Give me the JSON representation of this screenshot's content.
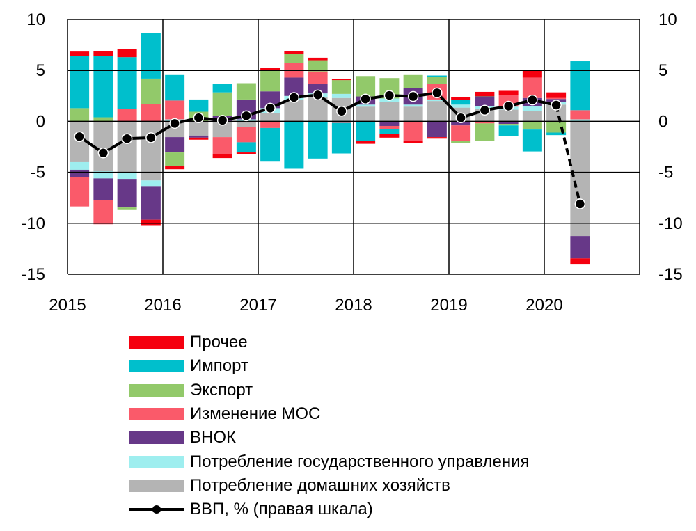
{
  "chart_data": {
    "type": "bar",
    "subtype": "stacked bar with line (right axis)",
    "title": "",
    "x_tick_labels": [
      "2015",
      "2016",
      "2017",
      "2018",
      "2019",
      "2020"
    ],
    "categories": [
      "2015Q1",
      "2015Q2",
      "2015Q3",
      "2015Q4",
      "2016Q1",
      "2016Q2",
      "2016Q3",
      "2016Q4",
      "2017Q1",
      "2017Q2",
      "2017Q3",
      "2017Q4",
      "2018Q1",
      "2018Q2",
      "2018Q3",
      "2018Q4",
      "2019Q1",
      "2019Q2",
      "2019Q3",
      "2019Q4",
      "2020Q1",
      "2020Q2"
    ],
    "ylim": [
      -15,
      10
    ],
    "yticks": [
      "10",
      "5",
      "0",
      "-5",
      "-10",
      "-15"
    ],
    "y_right_ticks": [
      "10",
      "5",
      "0",
      "-5",
      "-10",
      "-15"
    ],
    "grid": true,
    "legend_placement": "bottom",
    "series": [
      {
        "name": "Потребление домашних хозяйств",
        "color": "#b4b4b4",
        "values": [
          -4.0,
          -4.9,
          -5.05,
          -5.8,
          -1.55,
          -1.4,
          -1.55,
          -0.55,
          0.85,
          2.1,
          2.35,
          2.3,
          1.45,
          1.9,
          1.45,
          2.0,
          1.35,
          1.2,
          1.15,
          1.05,
          1.65,
          -11.25
        ]
      },
      {
        "name": "Потребление государственного управления",
        "color": "#9eeeef",
        "values": [
          -0.75,
          -0.7,
          -0.6,
          -0.55,
          0.2,
          0,
          0,
          0.2,
          0.45,
          0.4,
          0.4,
          0.4,
          0.2,
          0.35,
          0.2,
          0.15,
          0.3,
          0.3,
          0.3,
          0.45,
          0.25,
          0.2
        ]
      },
      {
        "name": "ВНОК",
        "color": "#673888",
        "values": [
          -0.7,
          -2.1,
          -2.8,
          -3.3,
          -1.5,
          -0.2,
          0.55,
          1.95,
          1.65,
          1.8,
          0.9,
          0,
          0.8,
          -0.45,
          1.65,
          -1.55,
          -0.4,
          0.85,
          -0.25,
          0.8,
          0.3,
          -2.2
        ]
      },
      {
        "name": "Изменение МОС",
        "color": "#fa5a6a",
        "values": [
          -2.9,
          -2.4,
          1.2,
          1.7,
          1.85,
          0,
          -1.65,
          -1.5,
          -0.65,
          1.45,
          1.25,
          -0.15,
          -0.1,
          -0.3,
          -1.9,
          1.5,
          -1.5,
          -0.2,
          1.15,
          2.0,
          0.1,
          0.9
        ]
      },
      {
        "name": "Экспорт",
        "color": "#92c96a",
        "values": [
          1.3,
          0.4,
          -0.25,
          2.5,
          -1.35,
          0.95,
          2.3,
          1.6,
          2.0,
          0.85,
          1.1,
          1.35,
          2.0,
          2.0,
          1.25,
          0.7,
          -0.2,
          -1.7,
          -0.15,
          -0.8,
          -1.1,
          0
        ]
      },
      {
        "name": "Импорт",
        "color": "#00bfcc",
        "values": [
          5.1,
          6.0,
          5.1,
          4.45,
          2.5,
          1.2,
          0.8,
          -1.0,
          -3.3,
          -4.65,
          -3.65,
          -3.0,
          -1.85,
          -0.5,
          0,
          0.15,
          0.45,
          0.1,
          -1.05,
          -2.15,
          -0.25,
          4.8
        ]
      },
      {
        "name": "Прочее",
        "color": "#f5000f",
        "values": [
          0.45,
          0.5,
          0.8,
          -0.6,
          -0.3,
          -0.2,
          -0.4,
          -0.2,
          0.3,
          0.3,
          0.25,
          0.1,
          -0.25,
          -0.35,
          -0.25,
          -0.15,
          0.25,
          0.45,
          0.4,
          0.7,
          0.55,
          -0.6
        ]
      }
    ],
    "line": {
      "name": "ВВП, % (правая шкала)",
      "color": "#000000",
      "values": [
        -1.5,
        -3.1,
        -1.7,
        -1.6,
        -0.2,
        0.35,
        0.1,
        0.55,
        1.3,
        2.35,
        2.6,
        1.0,
        2.2,
        2.55,
        2.45,
        2.8,
        0.35,
        1.1,
        1.5,
        2.1,
        1.6,
        -8.1
      ],
      "dashed_last_segment": true
    },
    "legend_order": [
      "Прочее",
      "Импорт",
      "Экспорт",
      "Изменение МОС",
      "ВНОК",
      "Потребление государственного управления",
      "Потребление домашних хозяйств",
      "ВВП, % (правая шкала)"
    ]
  }
}
